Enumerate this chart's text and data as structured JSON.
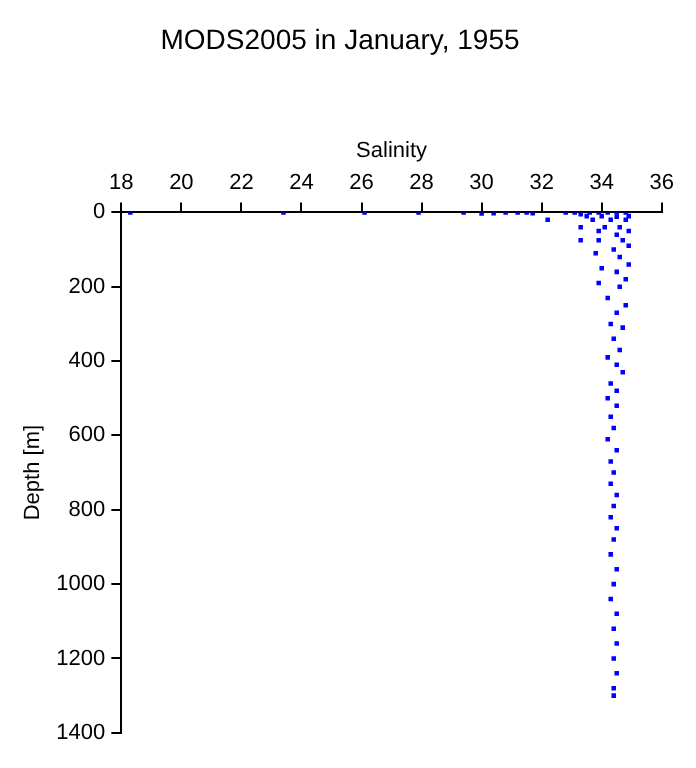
{
  "chart_data": {
    "type": "scatter",
    "title": "MODS2005 in January, 1955",
    "xlabel": "Salinity",
    "ylabel": "Depth [m]",
    "xlim": [
      18,
      36
    ],
    "xticks": [
      18,
      20,
      22,
      24,
      26,
      28,
      30,
      32,
      34,
      36
    ],
    "ylim": [
      1400,
      0
    ],
    "yticks": [
      0,
      200,
      400,
      600,
      800,
      1000,
      1200,
      1400
    ],
    "grid": false,
    "legend": false,
    "marker": "square",
    "series": [
      {
        "color": "#0000ff",
        "x": [
          18.3,
          23.4,
          26.1,
          27.9,
          29.4,
          30,
          30.4,
          30.8,
          31.2,
          31.5,
          31.7,
          32.2,
          32.8,
          33.1,
          33.3,
          33.6,
          33.9,
          34.2,
          34.5,
          34.8,
          33.5,
          34.0,
          34.5,
          34.9,
          33.7,
          34.3,
          34.8,
          33.3,
          34.1,
          34.6,
          34.9,
          33.9,
          34.5,
          33.3,
          33.9,
          34.7,
          34.9,
          34.4,
          33.8,
          34.6,
          34.9,
          34.0,
          34.5,
          34.8,
          33.9,
          34.6,
          34.2,
          34.8,
          34.5,
          34.3,
          34.7,
          34.4,
          34.6,
          34.2,
          34.5,
          34.7,
          34.3,
          34.5,
          34.2,
          34.5,
          34.3,
          34.4,
          34.2,
          34.5,
          34.3,
          34.4,
          34.3,
          34.5,
          34.4,
          34.3,
          34.5,
          34.4,
          34.3,
          34.5,
          34.4,
          34.3,
          34.5,
          34.4,
          34.5,
          34.4,
          34.5,
          34.4,
          34.4
        ],
        "values": [
          0,
          0,
          0,
          0,
          0,
          3,
          2,
          0,
          0,
          0,
          2,
          20,
          0,
          0,
          5,
          0,
          0,
          0,
          0,
          0,
          10,
          10,
          12,
          10,
          20,
          20,
          20,
          40,
          40,
          40,
          50,
          50,
          60,
          75,
          75,
          75,
          90,
          100,
          110,
          120,
          140,
          150,
          160,
          180,
          190,
          200,
          230,
          250,
          270,
          300,
          310,
          340,
          370,
          390,
          410,
          430,
          460,
          480,
          500,
          520,
          550,
          580,
          610,
          640,
          670,
          700,
          730,
          760,
          790,
          820,
          850,
          880,
          920,
          960,
          1000,
          1040,
          1080,
          1120,
          1160,
          1200,
          1240,
          1280,
          1300
        ]
      }
    ]
  }
}
